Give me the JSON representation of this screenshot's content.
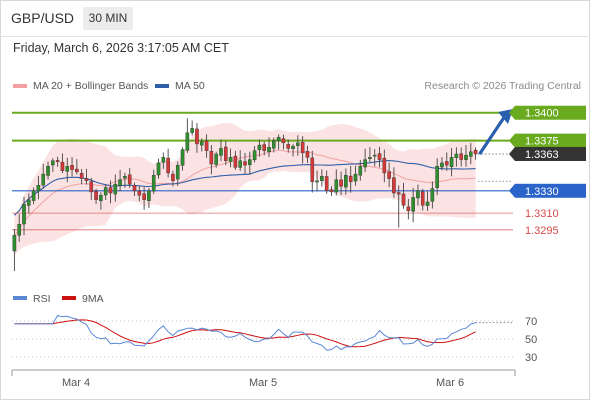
{
  "header": {
    "symbol": "GBP/USD",
    "timeframe": "30 MIN"
  },
  "datetime": "Friday, March 6, 2026 3:17:05 AM CET",
  "legend": {
    "ma20_label": "MA 20 + Bollinger Bands",
    "ma50_label": "MA 50",
    "ma20_color": "#f4a0a0",
    "ma50_color": "#2f5fa8"
  },
  "copyright": "Research © 2026 Trading Central",
  "chart_data": [
    {
      "type": "line",
      "series_kind": "candlestick",
      "y_range": [
        1.325,
        1.3415
      ],
      "x_tick_labels": [
        "Mar 4",
        "Mar 5",
        "Mar 6"
      ],
      "close_values": [
        1.329,
        1.33,
        1.3318,
        1.3322,
        1.333,
        1.3335,
        1.3345,
        1.3352,
        1.3357,
        1.3356,
        1.3348,
        1.3352,
        1.3349,
        1.3347,
        1.3341,
        1.3339,
        1.3329,
        1.3322,
        1.3326,
        1.3333,
        1.3328,
        1.3336,
        1.334,
        1.3343,
        1.3336,
        1.333,
        1.3326,
        1.3322,
        1.333,
        1.3344,
        1.3355,
        1.336,
        1.3346,
        1.3339,
        1.3353,
        1.3367,
        1.3382,
        1.3386,
        1.3372,
        1.3374,
        1.3366,
        1.3354,
        1.3363,
        1.3368,
        1.3357,
        1.336,
        1.3351,
        1.3357,
        1.3353,
        1.3358,
        1.3366,
        1.3371,
        1.3366,
        1.3369,
        1.3375,
        1.3378,
        1.3373,
        1.3368,
        1.337,
        1.3373,
        1.3364,
        1.336,
        1.3338,
        1.3339,
        1.3343,
        1.333,
        1.3329,
        1.334,
        1.3334,
        1.3344,
        1.3338,
        1.3345,
        1.3352,
        1.3358,
        1.336,
        1.3362,
        1.3358,
        1.3346,
        1.3341,
        1.3328,
        1.3327,
        1.3317,
        1.3312,
        1.3324,
        1.333,
        1.3317,
        1.332,
        1.3332,
        1.3352,
        1.3355,
        1.3353,
        1.336,
        1.3363,
        1.3358,
        1.3362,
        1.3365,
        1.3363
      ],
      "levels": [
        {
          "value": 1.34,
          "label": "1.3400",
          "style": "resistance-green",
          "color": "#6aaa1e"
        },
        {
          "value": 1.3375,
          "label": "1.3375",
          "style": "resistance-green",
          "color": "#6aaa1e"
        },
        {
          "value": 1.3363,
          "label": "1.3363",
          "style": "last-price",
          "color": "#333333"
        },
        {
          "value": 1.333,
          "label": "1.3330",
          "style": "pivot-blue",
          "color": "#2a63c9"
        },
        {
          "value": 1.331,
          "label": "1.3310",
          "style": "support-red",
          "color": "#d64a4a"
        },
        {
          "value": 1.3295,
          "label": "1.3295",
          "style": "support-red",
          "color": "#d64a4a"
        }
      ],
      "annotation": "up-arrow"
    },
    {
      "type": "line",
      "series": [
        {
          "name": "RSI"
        },
        {
          "name": "9MA"
        }
      ],
      "y_ticks": [
        70,
        50,
        30
      ],
      "y_range": [
        20,
        80
      ],
      "rsi_color": "#5b87d6",
      "ma_color": "#cc1111"
    }
  ]
}
